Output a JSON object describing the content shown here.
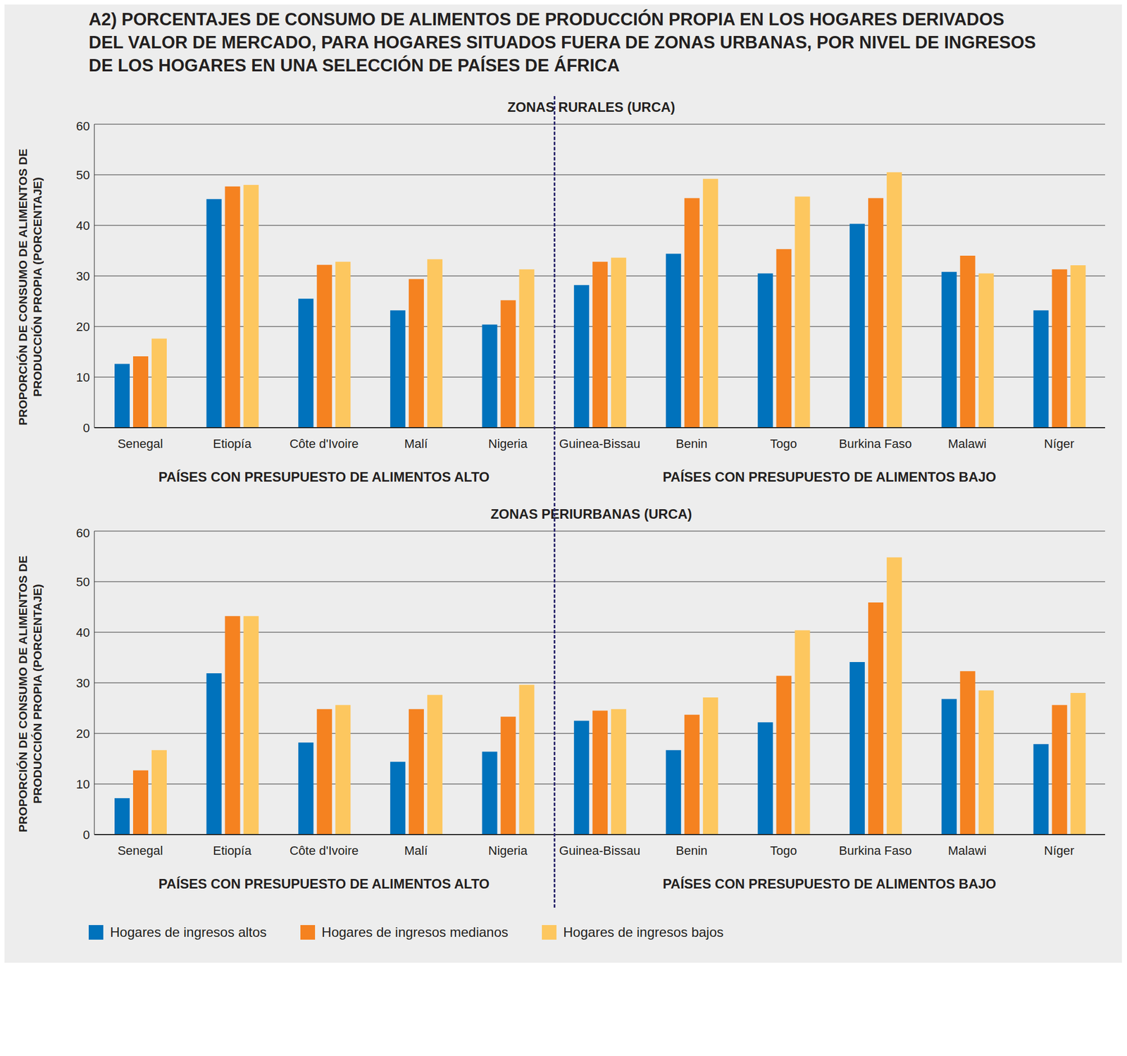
{
  "title": "A2) PORCENTAJES DE CONSUMO DE ALIMENTOS DE PRODUCCIÓN PROPIA EN LOS HOGARES DERIVADOS DEL VALOR DE MERCADO, PARA HOGARES SITUADOS FUERA DE ZONAS URBANAS, POR NIVEL DE INGRESOS DE LOS HOGARES EN UNA SELECCIÓN DE PAÍSES DE ÁFRICA",
  "chart_data": [
    {
      "type": "bar",
      "title": "ZONAS RURALES (URCA)",
      "y_label": "PROPORCIÓN DE CONSUMO DE ALIMENTOS DE PRODUCCIÓN PROPIA (PORCENTAJE)",
      "categories": [
        "Senegal",
        "Etiopía",
        "Côte d'Ivoire",
        "Malí",
        "Nigeria",
        "Guinea-Bissau",
        "Benin",
        "Togo",
        "Burkina Faso",
        "Malawi",
        "Níger"
      ],
      "series": [
        {
          "name": "Hogares de ingresos altos",
          "color": "#0072bc",
          "values": [
            12.6,
            45.2,
            25.5,
            23.2,
            20.4,
            28.2,
            34.4,
            30.5,
            40.3,
            30.8,
            23.2
          ]
        },
        {
          "name": "Hogares de ingresos medianos",
          "color": "#f58220",
          "values": [
            14.1,
            47.7,
            32.2,
            29.4,
            25.2,
            32.8,
            45.4,
            35.3,
            45.4,
            34.0,
            31.3
          ]
        },
        {
          "name": "Hogares de ingresos bajos",
          "color": "#fdc75f",
          "values": [
            17.6,
            48.0,
            32.8,
            33.3,
            31.3,
            33.6,
            49.2,
            45.7,
            50.5,
            30.5,
            32.1
          ]
        }
      ],
      "ylim": [
        0,
        60
      ],
      "yticks": [
        0,
        10,
        20,
        30,
        40,
        50,
        60
      ],
      "grid": true,
      "annotations": [
        "PAÍSES CON PRESUPUESTO DE ALIMENTOS ALTO",
        "PAÍSES CON PRESUPUESTO DE ALIMENTOS BAJO"
      ]
    },
    {
      "type": "bar",
      "title": "ZONAS PERIURBANAS (URCA)",
      "y_label": "PROPORCIÓN DE CONSUMO DE ALIMENTOS DE PRODUCCIÓN PROPIA (PORCENTAJE)",
      "categories": [
        "Senegal",
        "Etiopía",
        "Côte d'Ivoire",
        "Malí",
        "Nigeria",
        "Guinea-Bissau",
        "Benin",
        "Togo",
        "Burkina Faso",
        "Malawi",
        "Níger"
      ],
      "series": [
        {
          "name": "Hogares de ingresos altos",
          "color": "#0072bc",
          "values": [
            7.2,
            31.9,
            18.2,
            14.4,
            16.4,
            22.5,
            16.7,
            22.2,
            34.1,
            26.8,
            17.9
          ]
        },
        {
          "name": "Hogares de ingresos medianos",
          "color": "#f58220",
          "values": [
            12.7,
            43.2,
            24.8,
            24.8,
            23.3,
            24.5,
            23.7,
            31.4,
            45.9,
            32.3,
            25.6
          ]
        },
        {
          "name": "Hogares de ingresos bajos",
          "color": "#fdc75f",
          "values": [
            16.7,
            43.2,
            25.6,
            27.6,
            29.6,
            24.8,
            27.1,
            40.4,
            54.8,
            28.5,
            28.0
          ]
        }
      ],
      "ylim": [
        0,
        60
      ],
      "yticks": [
        0,
        10,
        20,
        30,
        40,
        50,
        60
      ],
      "grid": true,
      "legend": "bottom left",
      "annotations": [
        "PAÍSES CON PRESUPUESTO DE ALIMENTOS ALTO",
        "PAÍSES CON PRESUPUESTO DE ALIMENTOS BAJO"
      ]
    }
  ]
}
